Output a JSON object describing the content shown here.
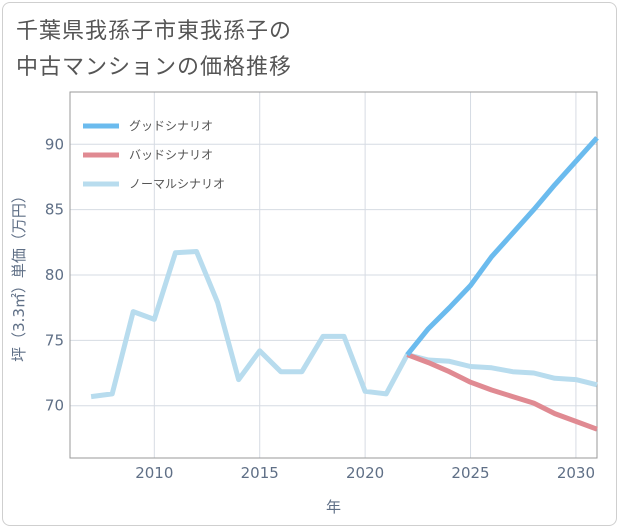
{
  "title_lines": [
    "千葉県我孫子市東我孫子の",
    "中古マンションの価格推移"
  ],
  "chart_data": {
    "type": "line",
    "title": "千葉県我孫子市東我孫子の中古マンションの価格推移",
    "xlabel": "年",
    "ylabel": "坪（3.3㎡）単価（万円）",
    "xlim": [
      2006,
      2031
    ],
    "ylim": [
      66,
      94
    ],
    "xticks": [
      2010,
      2015,
      2020,
      2025,
      2030
    ],
    "yticks": [
      70,
      75,
      80,
      85,
      90
    ],
    "grid": true,
    "legend_position": "top-left",
    "series": [
      {
        "name": "グッドシナリオ",
        "color": "#6bbbee",
        "x": [
          2022,
          2023,
          2024,
          2025,
          2026,
          2027,
          2028,
          2029,
          2030,
          2031
        ],
        "y": [
          73.9,
          75.9,
          77.5,
          79.2,
          81.4,
          83.2,
          85.0,
          86.9,
          88.7,
          90.5
        ]
      },
      {
        "name": "バッドシナリオ",
        "color": "#e08a92",
        "x": [
          2022,
          2023,
          2024,
          2025,
          2026,
          2027,
          2028,
          2029,
          2030,
          2031
        ],
        "y": [
          73.9,
          73.3,
          72.6,
          71.8,
          71.2,
          70.7,
          70.2,
          69.4,
          68.8,
          68.2
        ]
      },
      {
        "name": "ノーマルシナリオ",
        "color": "#b8dcee",
        "x": [
          2007,
          2008,
          2009,
          2010,
          2011,
          2012,
          2013,
          2014,
          2015,
          2016,
          2017,
          2018,
          2019,
          2020,
          2021,
          2022,
          2023,
          2024,
          2025,
          2026,
          2027,
          2028,
          2029,
          2030,
          2031
        ],
        "y": [
          70.7,
          70.9,
          77.2,
          76.6,
          81.7,
          81.8,
          77.9,
          72.0,
          74.2,
          72.6,
          72.6,
          75.3,
          75.3,
          71.1,
          70.9,
          73.9,
          73.5,
          73.4,
          73.0,
          72.9,
          72.6,
          72.5,
          72.1,
          72.0,
          71.6
        ]
      }
    ]
  }
}
